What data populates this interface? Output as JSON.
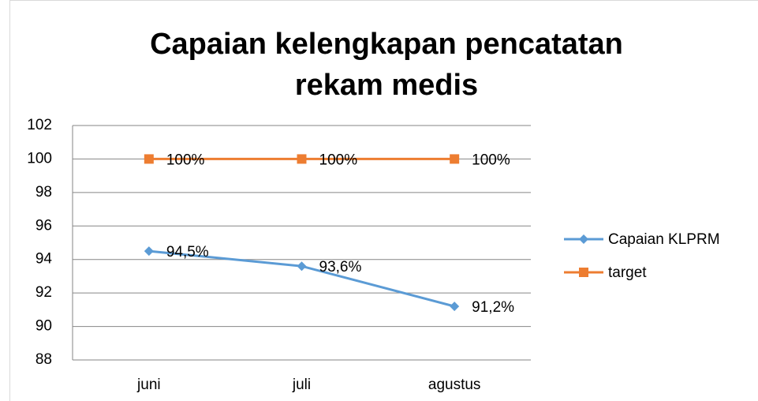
{
  "chart_data": {
    "type": "line",
    "title": "Capaian kelengkapan pencatatan rekam medis",
    "categories": [
      "juni",
      "juli",
      "agustus"
    ],
    "series": [
      {
        "name": "Capaian KLPRM",
        "color": "#5b9bd5",
        "marker": "diamond",
        "values": [
          94.5,
          93.6,
          91.2
        ],
        "value_labels": [
          "94,5%",
          "93,6%",
          "91,2%"
        ]
      },
      {
        "name": "target",
        "color": "#ed7d31",
        "marker": "square",
        "values": [
          100,
          100,
          100
        ],
        "value_labels": [
          "100%",
          "100%",
          "100%"
        ]
      }
    ],
    "ylim": [
      88,
      102
    ],
    "yticks": [
      88,
      90,
      92,
      94,
      96,
      98,
      100,
      102
    ],
    "grid": true,
    "legend": "right"
  }
}
